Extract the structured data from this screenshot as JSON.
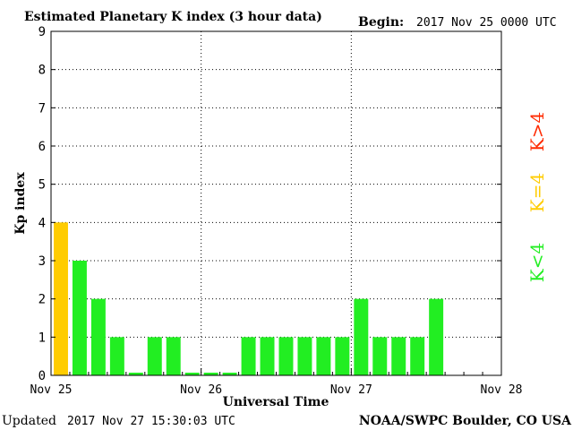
{
  "chart_data": {
    "type": "bar",
    "title": "Estimated Planetary K index (3 hour data)",
    "begin_label": "Begin:",
    "begin_value": "2017 Nov 25 0000 UTC",
    "ylabel": "Kp index",
    "xlabel": "Universal Time",
    "ylim": [
      0,
      9
    ],
    "yticks": [
      "0",
      "1",
      "2",
      "3",
      "4",
      "5",
      "6",
      "7",
      "8",
      "9"
    ],
    "x_tick_labels": [
      "Nov 25",
      "Nov 26",
      "Nov 27",
      "Nov 28"
    ],
    "interval_hours": 3,
    "values": [
      4,
      3,
      2,
      1,
      0,
      1,
      1,
      0,
      0,
      0,
      1,
      1,
      1,
      1,
      1,
      1,
      2,
      1,
      1,
      1,
      2
    ],
    "grid": true,
    "color_rules": [
      {
        "label": "K>4",
        "condition": "gt4",
        "color": "#ff2a00"
      },
      {
        "label": "K=4",
        "condition": "eq4",
        "color": "#ffcc00"
      },
      {
        "label": "K<4",
        "condition": "lt4",
        "color": "#22ee22"
      }
    ]
  },
  "footer": {
    "updated_label": "Updated",
    "updated_value": "2017 Nov 27 15:30:03 UTC",
    "source": "NOAA/SWPC Boulder, CO USA"
  }
}
